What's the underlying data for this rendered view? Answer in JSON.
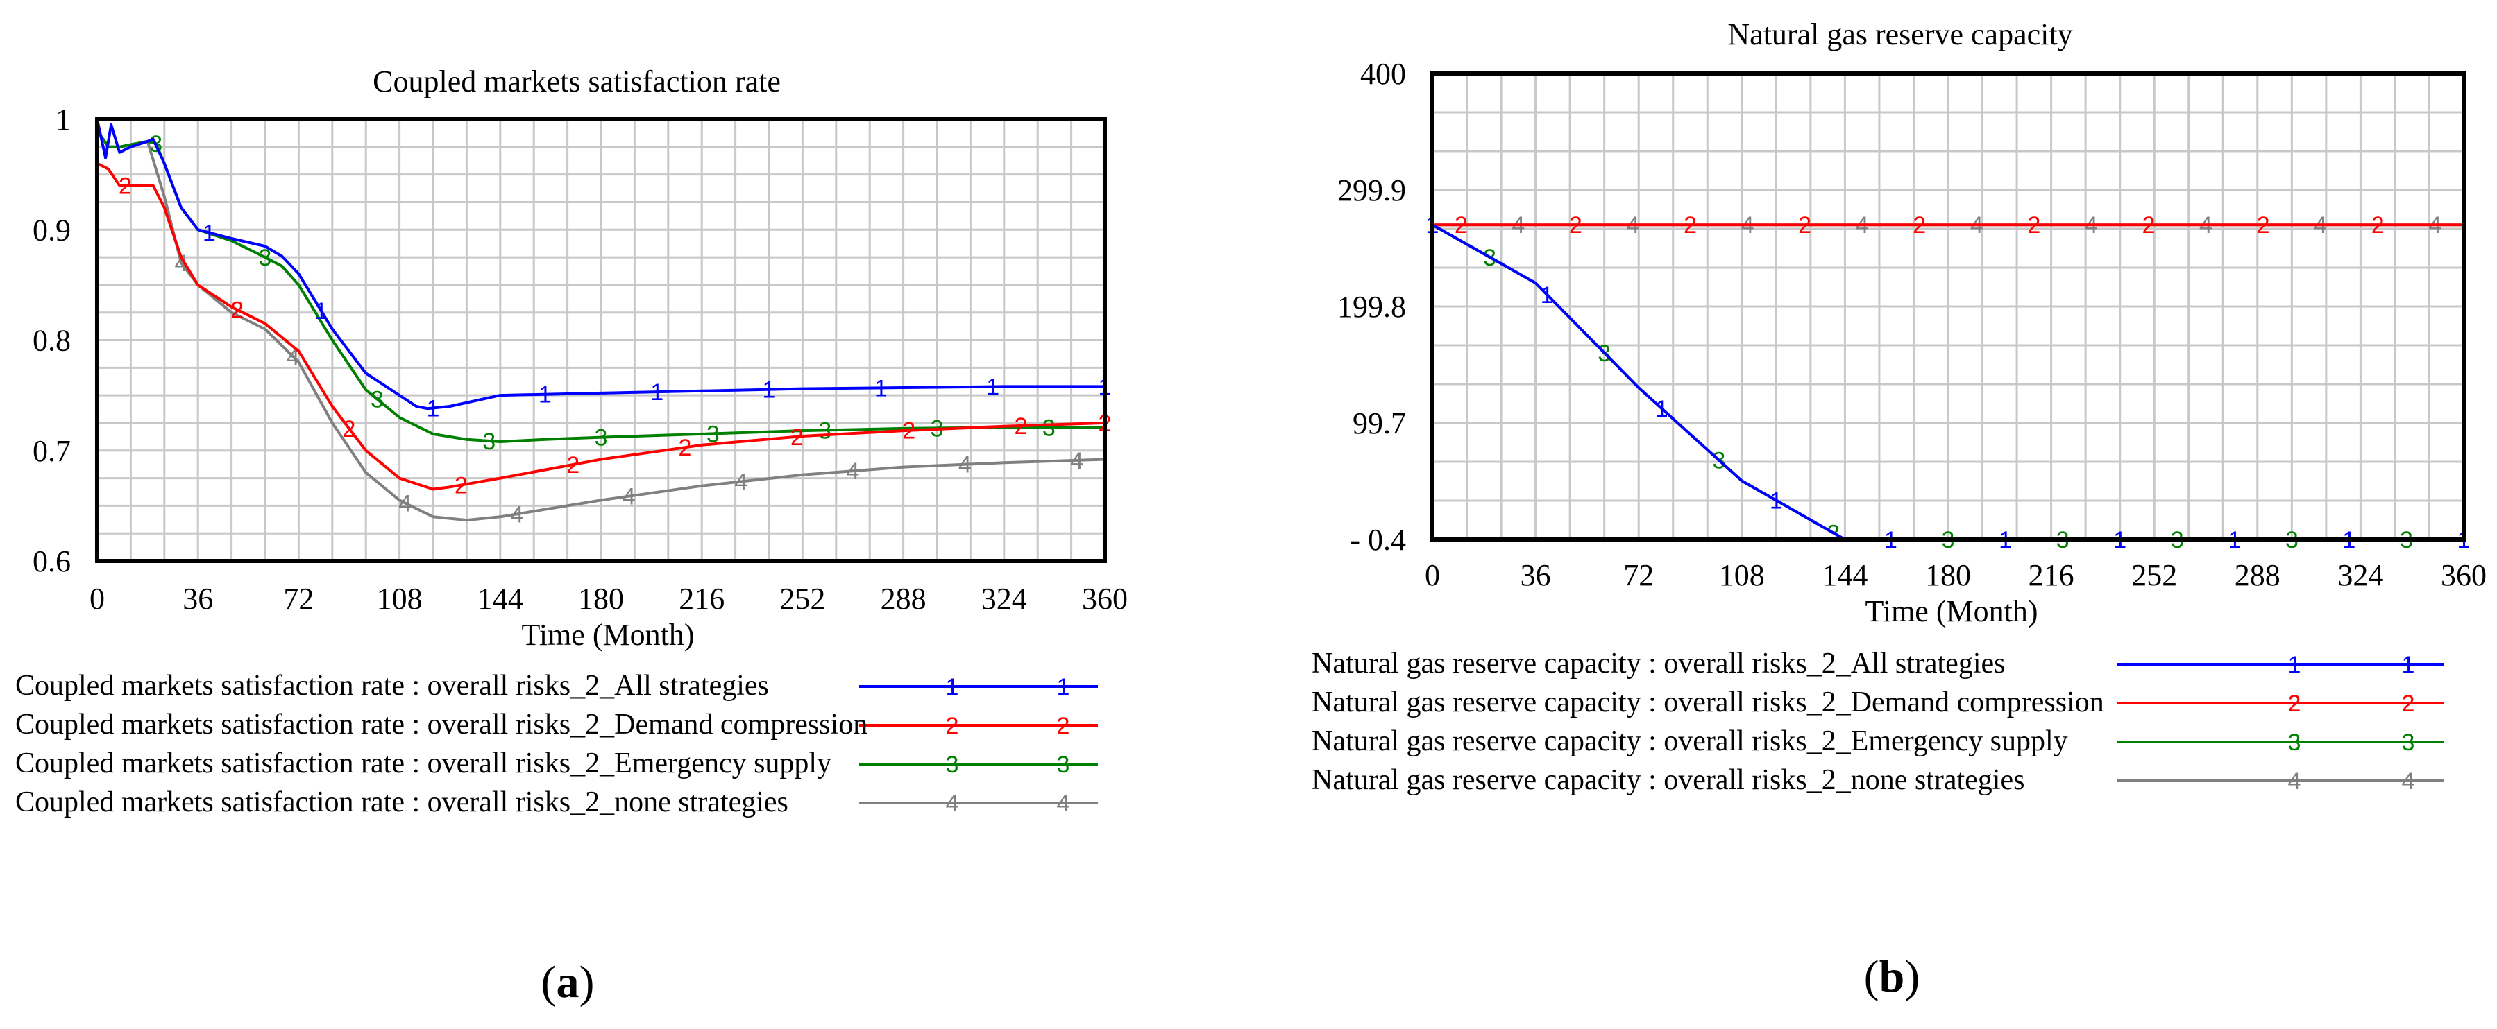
{
  "figure": {
    "panels": [
      {
        "open": "(",
        "letter": "a",
        "close": ")"
      },
      {
        "open": "(",
        "letter": "b",
        "close": ")"
      }
    ]
  },
  "chart_data": [
    {
      "type": "line",
      "title": "Coupled markets satisfaction rate",
      "xlabel": "Time (Month)",
      "ylabel": "",
      "xlim": [
        0,
        360
      ],
      "ylim": [
        0.6,
        1.0
      ],
      "xticks": [
        0,
        36,
        72,
        108,
        144,
        180,
        216,
        252,
        288,
        324,
        360
      ],
      "xtick_labels": [
        "0",
        "36",
        "72",
        "108",
        "144",
        "180",
        "216",
        "252",
        "288",
        "324",
        "360"
      ],
      "yticks": [
        0.6,
        0.7,
        0.8,
        0.9,
        1.0
      ],
      "ytick_labels": [
        "0.6",
        "0.7",
        "0.8",
        "0.9",
        "1"
      ],
      "grid": true,
      "legend": "bottom",
      "series": [
        {
          "name": "Coupled markets satisfaction rate : overall risks_2_All strategies",
          "marker": "1",
          "color": "#0000ff",
          "x": [
            0,
            3,
            5,
            8,
            12,
            18,
            20,
            24,
            30,
            36,
            48,
            60,
            66,
            72,
            84,
            96,
            108,
            114,
            118,
            126,
            144,
            180,
            216,
            252,
            288,
            324,
            360
          ],
          "y": [
            1.0,
            0.965,
            0.995,
            0.97,
            0.975,
            0.98,
            0.982,
            0.96,
            0.92,
            0.9,
            0.892,
            0.885,
            0.876,
            0.86,
            0.81,
            0.77,
            0.75,
            0.74,
            0.738,
            0.74,
            0.75,
            0.752,
            0.754,
            0.756,
            0.757,
            0.758,
            0.758
          ],
          "markers_x": [
            40,
            80,
            120,
            160,
            200,
            240,
            280,
            320,
            360
          ]
        },
        {
          "name": "Coupled markets satisfaction rate : overall risks_2_Demand compression",
          "marker": "2",
          "color": "#ff0000",
          "x": [
            0,
            4,
            8,
            12,
            16,
            20,
            24,
            30,
            36,
            48,
            60,
            72,
            84,
            96,
            108,
            120,
            126,
            144,
            180,
            216,
            252,
            288,
            324,
            360
          ],
          "y": [
            0.96,
            0.955,
            0.94,
            0.94,
            0.94,
            0.94,
            0.92,
            0.875,
            0.85,
            0.83,
            0.815,
            0.79,
            0.74,
            0.7,
            0.675,
            0.665,
            0.667,
            0.675,
            0.692,
            0.705,
            0.713,
            0.718,
            0.722,
            0.725
          ],
          "markers_x": [
            10,
            50,
            90,
            130,
            170,
            210,
            250,
            290,
            330,
            360
          ]
        },
        {
          "name": "Coupled markets satisfaction rate : overall risks_2_Emergency supply",
          "marker": "3",
          "color": "#008000",
          "x": [
            0,
            4,
            8,
            12,
            18,
            21,
            24,
            30,
            36,
            48,
            60,
            66,
            72,
            84,
            96,
            108,
            120,
            132,
            144,
            160,
            180,
            216,
            252,
            288,
            324,
            360
          ],
          "y": [
            0.99,
            0.975,
            0.975,
            0.977,
            0.98,
            0.978,
            0.96,
            0.92,
            0.9,
            0.89,
            0.875,
            0.867,
            0.85,
            0.8,
            0.755,
            0.73,
            0.715,
            0.71,
            0.708,
            0.71,
            0.712,
            0.715,
            0.718,
            0.72,
            0.721,
            0.721
          ],
          "markers_x": [
            21,
            60,
            100,
            140,
            180,
            220,
            260,
            300,
            340
          ]
        },
        {
          "name": "Coupled markets satisfaction rate : overall risks_2_none strategies",
          "marker": "4",
          "color": "#808080",
          "x": [
            0,
            4,
            8,
            12,
            18,
            24,
            30,
            36,
            48,
            60,
            72,
            84,
            96,
            108,
            120,
            132,
            144,
            180,
            216,
            252,
            288,
            324,
            360
          ],
          "y": [
            0.99,
            0.975,
            0.975,
            0.977,
            0.98,
            0.93,
            0.87,
            0.85,
            0.825,
            0.81,
            0.78,
            0.725,
            0.68,
            0.655,
            0.64,
            0.637,
            0.64,
            0.655,
            0.668,
            0.678,
            0.685,
            0.689,
            0.692
          ],
          "markers_x": [
            30,
            70,
            110,
            150,
            190,
            230,
            270,
            310,
            350
          ]
        }
      ]
    },
    {
      "type": "line",
      "title": "Natural gas reserve capacity",
      "xlabel": "Time (Month)",
      "ylabel": "",
      "xlim": [
        0,
        360
      ],
      "ylim": [
        -0.4,
        400
      ],
      "xticks": [
        0,
        36,
        72,
        108,
        144,
        180,
        216,
        252,
        288,
        324,
        360
      ],
      "xtick_labels": [
        "0",
        "36",
        "72",
        "108",
        "144",
        "180",
        "216",
        "252",
        "288",
        "324",
        "360"
      ],
      "yticks": [
        -0.4,
        99.7,
        199.8,
        299.9,
        400
      ],
      "ytick_labels": [
        "- 0.4",
        "99.7",
        "199.8",
        "299.9",
        "400"
      ],
      "grid": true,
      "legend": "bottom",
      "series": [
        {
          "name": "Natural gas reserve capacity : overall risks_2_All strategies",
          "marker": "1",
          "color": "#0000ff",
          "x": [
            0,
            36,
            72,
            108,
            144,
            360
          ],
          "y": [
            270,
            220,
            130,
            50,
            -0.4,
            -0.4
          ],
          "markers_x": [
            0,
            40,
            80,
            120,
            160,
            200,
            240,
            280,
            320,
            360
          ]
        },
        {
          "name": "Natural gas reserve capacity : overall risks_2_Demand compression",
          "marker": "2",
          "color": "#ff0000",
          "x": [
            0,
            360
          ],
          "y": [
            270,
            270
          ],
          "markers_x": [
            10,
            50,
            90,
            130,
            170,
            210,
            250,
            290,
            330
          ]
        },
        {
          "name": "Natural gas reserve capacity : overall risks_2_Emergency supply",
          "marker": "3",
          "color": "#008000",
          "x": [
            0,
            36,
            72,
            108,
            144,
            360
          ],
          "y": [
            270,
            220,
            130,
            50,
            -0.4,
            -0.4
          ],
          "markers_x": [
            20,
            60,
            100,
            140,
            180,
            220,
            260,
            300,
            340
          ]
        },
        {
          "name": "Natural gas reserve capacity : overall risks_2_none strategies",
          "marker": "4",
          "color": "#808080",
          "x": [
            0,
            360
          ],
          "y": [
            270,
            270
          ],
          "markers_x": [
            30,
            70,
            110,
            150,
            190,
            230,
            270,
            310,
            350
          ]
        }
      ]
    }
  ]
}
